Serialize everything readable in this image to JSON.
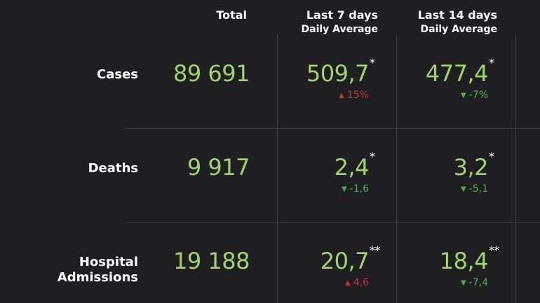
{
  "headers": {
    "total": "Total",
    "last7_line1": "Last 7 days",
    "last7_line2": "Daily Average",
    "last14_line1": "Last 14 days",
    "last14_line2": "Daily Average"
  },
  "rows": [
    {
      "label_line1": "Cases",
      "label_line2": "",
      "total": "89 691",
      "last7": {
        "value": "509,7",
        "asterisk": "*",
        "change": "15%",
        "direction": "up"
      },
      "last14": {
        "value": "477,4",
        "asterisk": "*",
        "change": "-7%",
        "direction": "down"
      }
    },
    {
      "label_line1": "Deaths",
      "label_line2": "",
      "total": "9 917",
      "last7": {
        "value": "2,4",
        "asterisk": "*",
        "change": "-1,6",
        "direction": "down"
      },
      "last14": {
        "value": "3,2",
        "asterisk": "*",
        "change": "-5,1",
        "direction": "down"
      }
    },
    {
      "label_line1": "Hospital",
      "label_line2": "Admissions",
      "total": "19 188",
      "last7": {
        "value": "20,7",
        "asterisk": "**",
        "change": "4,6",
        "direction": "up"
      },
      "last14": {
        "value": "18,4",
        "asterisk": "**",
        "change": "-7,4",
        "direction": "down"
      }
    }
  ],
  "colors": {
    "background": "#1f1f21",
    "value_green": "#9fd36f",
    "up_red": "#c83232",
    "down_green": "#4caf50",
    "grid": "#3c3c3f"
  },
  "icons": {
    "up": "arrow-up-icon",
    "down": "arrow-down-icon"
  }
}
